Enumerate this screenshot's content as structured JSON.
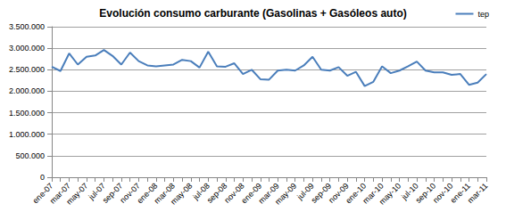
{
  "chart_data": {
    "type": "line",
    "title": "Evolución consumo carburante (Gasolinas + Gasóleos auto)",
    "categories": [
      "ene-07",
      null,
      "mar-07",
      null,
      "may-07",
      null,
      "jul-07",
      null,
      "sep-07",
      null,
      "nov-07",
      null,
      "ene-08",
      null,
      "mar-08",
      null,
      "may-08",
      null,
      "jul-08",
      null,
      "sep-08",
      null,
      "nov-08",
      null,
      "ene-09",
      null,
      "mar-09",
      null,
      "may-09",
      null,
      "jul-09",
      null,
      "sep-09",
      null,
      "nov-09",
      null,
      "ene-10",
      null,
      "mar-10",
      null,
      "may-10",
      null,
      "jul-10",
      null,
      "sep-10",
      null,
      "nov-10",
      null,
      "ene-11",
      null,
      "mar-11"
    ],
    "series": [
      {
        "name": "tep",
        "color": "#4a7ebb",
        "values": [
          2570000,
          2470000,
          2880000,
          2620000,
          2800000,
          2830000,
          2960000,
          2820000,
          2620000,
          2900000,
          2700000,
          2600000,
          2580000,
          2600000,
          2620000,
          2730000,
          2700000,
          2550000,
          2920000,
          2580000,
          2570000,
          2650000,
          2400000,
          2500000,
          2280000,
          2270000,
          2480000,
          2500000,
          2480000,
          2600000,
          2800000,
          2500000,
          2480000,
          2560000,
          2360000,
          2450000,
          2120000,
          2220000,
          2580000,
          2420000,
          2480000,
          2580000,
          2690000,
          2480000,
          2440000,
          2440000,
          2380000,
          2400000,
          2150000,
          2200000,
          2400000
        ]
      }
    ],
    "ylim": [
      0,
      3500000
    ],
    "yticks": [
      0,
      {
        "value": 500000,
        "label": "500.000"
      },
      {
        "value": 1000000,
        "label": "1.000.000"
      },
      {
        "value": 1500000,
        "label": "1.500.000"
      },
      {
        "value": 2000000,
        "label": "2.000.000"
      },
      {
        "value": 2500000,
        "label": "2.500.000"
      },
      {
        "value": 3000000,
        "label": "3.000.000"
      },
      {
        "value": 3500000,
        "label": "3.500.000"
      }
    ],
    "grid": true,
    "legend": "top-right"
  }
}
